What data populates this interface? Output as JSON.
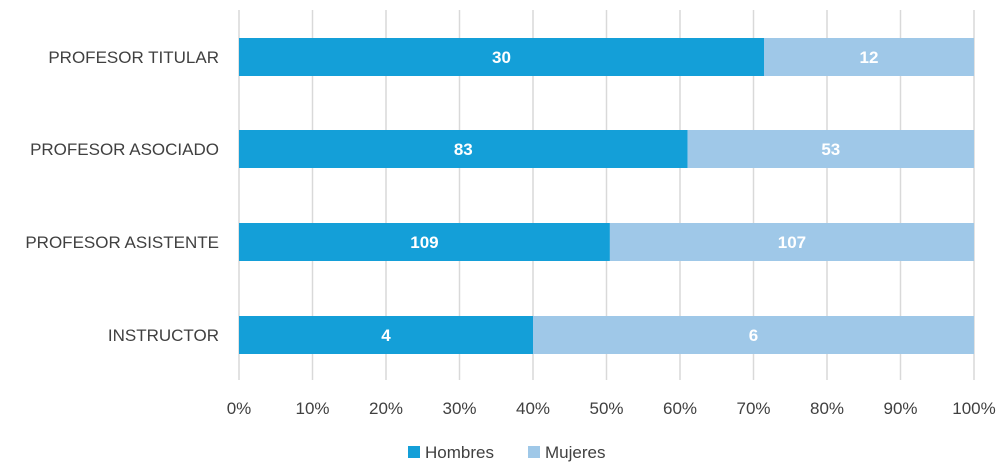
{
  "chart_data": {
    "type": "bar",
    "orientation": "horizontal",
    "stacking": "percent",
    "categories": [
      "PROFESOR TITULAR",
      "PROFESOR ASOCIADO",
      "PROFESOR ASISTENTE",
      "INSTRUCTOR"
    ],
    "series": [
      {
        "name": "Hombres",
        "color": "#149fd8",
        "values": [
          30,
          83,
          109,
          4
        ]
      },
      {
        "name": "Mujeres",
        "color": "#9fc8e8",
        "values": [
          12,
          53,
          107,
          6
        ]
      }
    ],
    "xlim": [
      0,
      100
    ],
    "x_ticks": [
      "0%",
      "10%",
      "20%",
      "30%",
      "40%",
      "50%",
      "60%",
      "70%",
      "80%",
      "90%",
      "100%"
    ],
    "grid": "vertical",
    "legend_position": "bottom-center"
  }
}
